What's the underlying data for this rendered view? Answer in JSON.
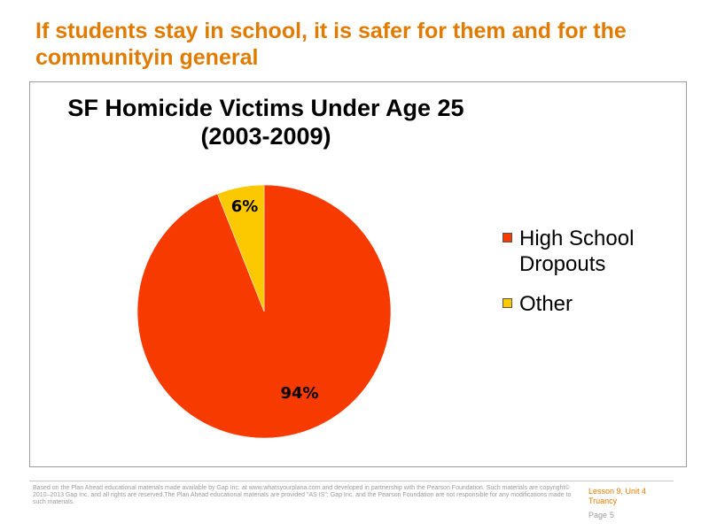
{
  "slide": {
    "title": "If students stay in school, it is safer for them and for the communityin general"
  },
  "chart_data": {
    "type": "pie",
    "title": "SF Homicide Victims Under Age 25 (2003-2009)",
    "title_line1": "SF Homicide Victims Under Age 25",
    "title_line2": "(2003-2009)",
    "categories": [
      "High School Dropouts",
      "Other"
    ],
    "values": [
      94,
      6
    ],
    "data_labels": [
      "94%",
      "6%"
    ],
    "colors": [
      "#f73b00",
      "#fcc800"
    ],
    "legend_placement": "right"
  },
  "footer": {
    "disclaimer": "Based on the Plan Ahead educational materials made available by Gap Inc. at www.whatsyourplana.com and developed in partnership with the Pearson Foundation. Such materials are copyright© 2010–2013 Gap Inc. and all rights are reserved.The Plan Ahead educational materials are provided \"AS IS\"; Gap Inc. and the Pearson Foundation are not responsible for any modifications made to such materials.",
    "lesson": "Lesson 9, Unit 4",
    "topic": "Truancy",
    "page_label": "Page",
    "page_number": "5"
  }
}
